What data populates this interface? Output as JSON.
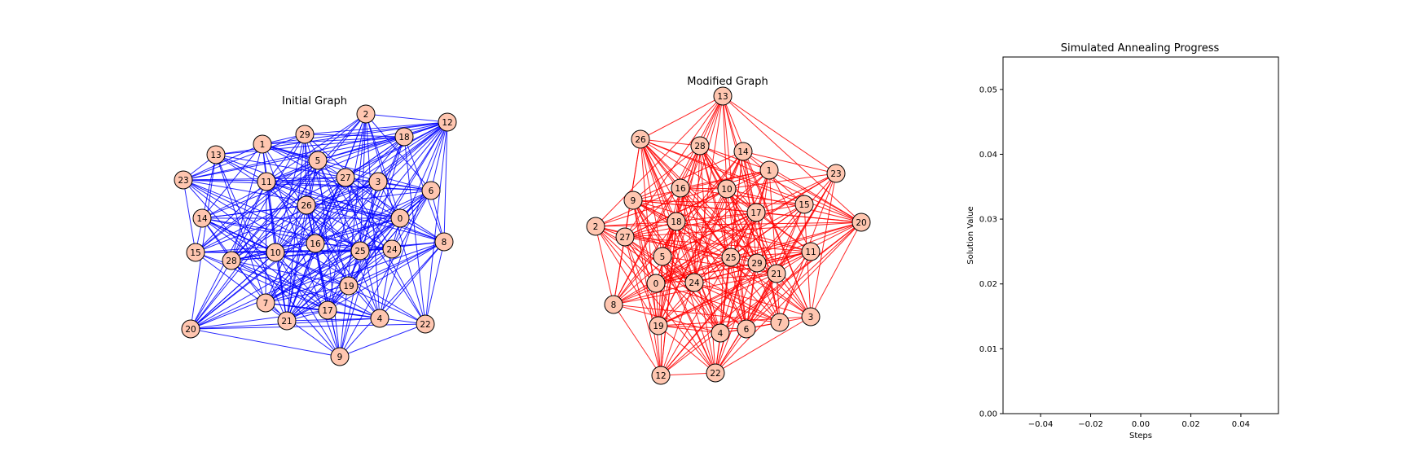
{
  "chart_data": [
    {
      "type": "network",
      "title": "Initial Graph",
      "edge_color": "#0000ff",
      "node_color": "#ffc6b0",
      "nodes": [
        "0",
        "1",
        "2",
        "3",
        "4",
        "5",
        "6",
        "7",
        "8",
        "9",
        "10",
        "11",
        "12",
        "13",
        "14",
        "15",
        "16",
        "17",
        "18",
        "19",
        "20",
        "21",
        "22",
        "23",
        "24",
        "25",
        "26",
        "27",
        "28",
        "29"
      ]
    },
    {
      "type": "network",
      "title": "Modified Graph",
      "edge_color": "#ff0000",
      "node_color": "#ffc6b0",
      "nodes": [
        "0",
        "1",
        "2",
        "3",
        "4",
        "5",
        "6",
        "7",
        "8",
        "9",
        "10",
        "11",
        "12",
        "13",
        "14",
        "15",
        "16",
        "17",
        "18",
        "19",
        "20",
        "21",
        "22",
        "23",
        "24",
        "25",
        "26",
        "27",
        "28",
        "29"
      ]
    },
    {
      "type": "line",
      "title": "Simulated Annealing Progress",
      "xlabel": "Steps",
      "ylabel": "Solution Value",
      "xlim": [
        -0.055,
        0.055
      ],
      "ylim": [
        0.0,
        0.055
      ],
      "xticks": [
        "−0.04",
        "−0.02",
        "0.00",
        "0.02",
        "0.04"
      ],
      "yticks": [
        "0.00",
        "0.01",
        "0.02",
        "0.03",
        "0.04",
        "0.05"
      ],
      "series": [],
      "grid": false
    }
  ]
}
